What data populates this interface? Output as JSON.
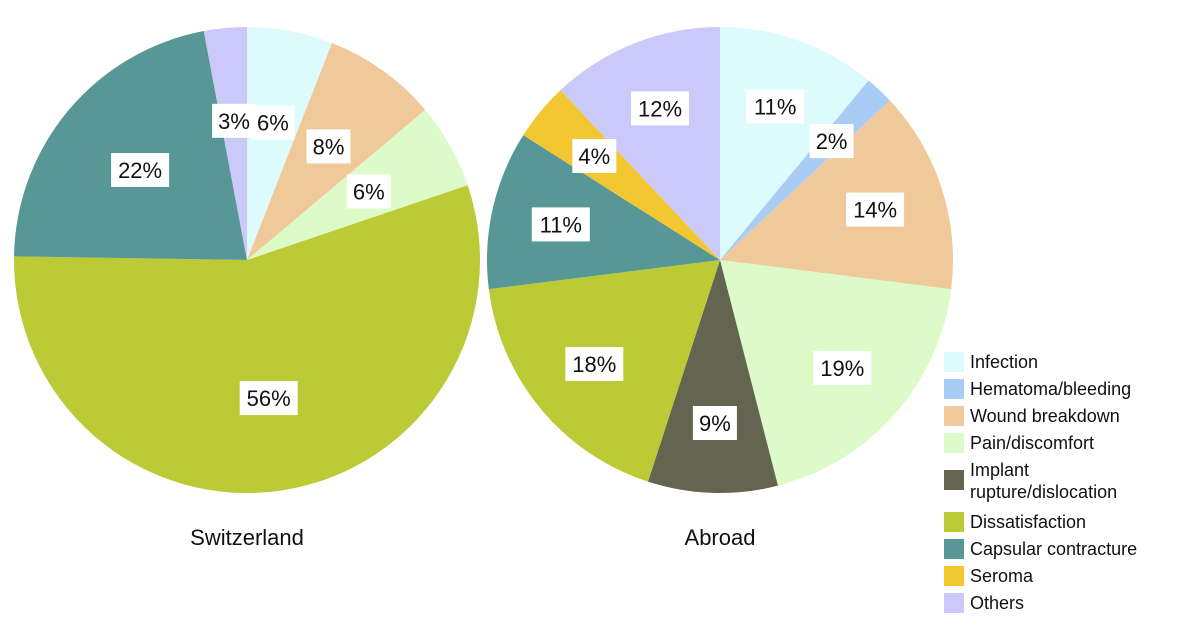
{
  "chart_data": [
    {
      "type": "pie",
      "title": "Switzerland",
      "slices": [
        {
          "category": "Infection",
          "value": 6,
          "label": "6%"
        },
        {
          "category": "Wound breakdown",
          "value": 8,
          "label": "8%"
        },
        {
          "category": "Pain/discomfort",
          "value": 6,
          "label": "6%"
        },
        {
          "category": "Dissatisfaction",
          "value": 56,
          "label": "56%"
        },
        {
          "category": "Capsular contracture",
          "value": 22,
          "label": "22%"
        },
        {
          "category": "Others",
          "value": 3,
          "label": "3%"
        }
      ]
    },
    {
      "type": "pie",
      "title": "Abroad",
      "slices": [
        {
          "category": "Infection",
          "value": 11,
          "label": "11%"
        },
        {
          "category": "Hematoma/bleeding",
          "value": 2,
          "label": "2%"
        },
        {
          "category": "Wound breakdown",
          "value": 14,
          "label": "14%"
        },
        {
          "category": "Pain/discomfort",
          "value": 19,
          "label": "19%"
        },
        {
          "category": "Implant rupture/dislocation",
          "value": 9,
          "label": "9%"
        },
        {
          "category": "Dissatisfaction",
          "value": 18,
          "label": "18%"
        },
        {
          "category": "Capsular contracture",
          "value": 11,
          "label": "11%"
        },
        {
          "category": "Seroma",
          "value": 4,
          "label": "4%"
        },
        {
          "category": "Others",
          "value": 12,
          "label": "12%"
        }
      ]
    }
  ],
  "legend": {
    "placement": "bottom-right",
    "items": [
      {
        "name": "Infection",
        "lines": [
          "Infection"
        ],
        "color": "#DDFAFD"
      },
      {
        "name": "Hematoma/bleeding",
        "lines": [
          "Hematoma/bleeding"
        ],
        "color": "#A9CCF6"
      },
      {
        "name": "Wound breakdown",
        "lines": [
          "Wound breakdown"
        ],
        "color": "#F0C99B"
      },
      {
        "name": "Pain/discomfort",
        "lines": [
          "Pain/discomfort"
        ],
        "color": "#DDFAC9"
      },
      {
        "name": "Implant rupture/dislocation",
        "lines": [
          "Implant",
          "rupture/dislocation"
        ],
        "color": "#636550"
      },
      {
        "name": "Dissatisfaction",
        "lines": [
          "Dissatisfaction"
        ],
        "color": "#BBCA35"
      },
      {
        "name": "Capsular contracture",
        "lines": [
          "Capsular contracture"
        ],
        "color": "#579897"
      },
      {
        "name": "Seroma",
        "lines": [
          "Seroma"
        ],
        "color": "#F2C732"
      },
      {
        "name": "Others",
        "lines": [
          "Others"
        ],
        "color": "#CBC9F9"
      }
    ]
  }
}
